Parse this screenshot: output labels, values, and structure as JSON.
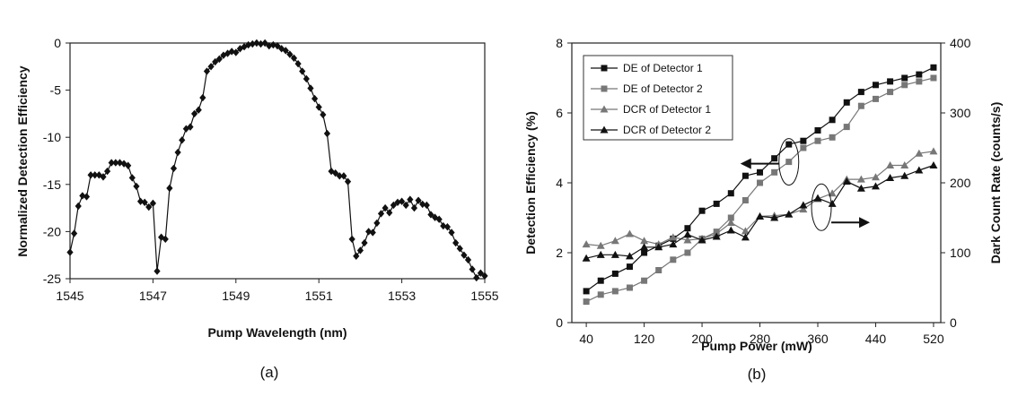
{
  "chart_data": [
    {
      "type": "line",
      "panel_label": "(a)",
      "title": "",
      "xlabel": "Pump Wavelength (nm)",
      "ylabel": "Normalized Detection Efficiency",
      "xlim": [
        1545,
        1555
      ],
      "ylim": [
        -25,
        0
      ],
      "xticks": [
        "1545",
        "1547",
        "1549",
        "1551",
        "1553",
        "1555"
      ],
      "yticks": [
        "0",
        "-5",
        "-10",
        "-15",
        "-20",
        "-25"
      ],
      "grid": false,
      "series": [
        {
          "color": "#111111",
          "marker": "diamond",
          "x": [
            1545.0,
            1545.1,
            1545.2,
            1545.3,
            1545.4,
            1545.5,
            1545.6,
            1545.7,
            1545.8,
            1545.9,
            1546.0,
            1546.1,
            1546.2,
            1546.3,
            1546.4,
            1546.5,
            1546.6,
            1546.7,
            1546.8,
            1546.9,
            1547.0,
            1547.1,
            1547.2,
            1547.3,
            1547.4,
            1547.5,
            1547.6,
            1547.7,
            1547.8,
            1547.9,
            1548.0,
            1548.1,
            1548.2,
            1548.3,
            1548.4,
            1548.5,
            1548.6,
            1548.7,
            1548.8,
            1548.9,
            1549.0,
            1549.1,
            1549.2,
            1549.3,
            1549.4,
            1549.5,
            1549.6,
            1549.7,
            1549.8,
            1549.9,
            1550.0,
            1550.1,
            1550.2,
            1550.3,
            1550.4,
            1550.5,
            1550.6,
            1550.7,
            1550.8,
            1550.9,
            1551.0,
            1551.1,
            1551.2,
            1551.3,
            1551.4,
            1551.5,
            1551.6,
            1551.7,
            1551.8,
            1551.9,
            1552.0,
            1552.1,
            1552.2,
            1552.3,
            1552.4,
            1552.5,
            1552.6,
            1552.7,
            1552.8,
            1552.9,
            1553.0,
            1553.1,
            1553.2,
            1553.3,
            1553.4,
            1553.5,
            1553.6,
            1553.7,
            1553.8,
            1553.9,
            1554.0,
            1554.1,
            1554.2,
            1554.3,
            1554.4,
            1554.5,
            1554.6,
            1554.7,
            1554.8,
            1554.9
          ],
          "y": [
            -22.2,
            -20.2,
            -17.3,
            -16.2,
            -16.3,
            -14.0,
            -14.0,
            -14.0,
            -14.2,
            -13.6,
            -12.7,
            -12.7,
            -12.7,
            -12.8,
            -13.0,
            -14.3,
            -15.2,
            -16.8,
            -16.9,
            -17.4,
            -17.0,
            -24.2,
            -20.6,
            -20.8,
            -15.4,
            -13.3,
            -11.6,
            -10.3,
            -9.1,
            -8.9,
            -7.5,
            -7.1,
            -5.8,
            -3.0,
            -2.5,
            -2.0,
            -1.7,
            -1.3,
            -1.1,
            -0.9,
            -1.0,
            -0.6,
            -0.4,
            -0.2,
            -0.1,
            0.0,
            -0.1,
            0.0,
            -0.3,
            -0.2,
            -0.3,
            -0.6,
            -0.8,
            -1.2,
            -1.6,
            -2.2,
            -3.0,
            -3.8,
            -4.8,
            -5.9,
            -6.8,
            -7.6,
            -9.6,
            -13.6,
            -13.8,
            -14.1,
            -14.1,
            -14.7,
            -20.8,
            -22.6,
            -22.0,
            -21.2,
            -20.0,
            -20.1,
            -19.1,
            -18.1,
            -17.5,
            -18.0,
            -17.2,
            -16.9,
            -16.8,
            -17.2,
            -16.6,
            -17.5,
            -16.7,
            -17.1,
            -17.2,
            -18.2,
            -18.5,
            -18.7,
            -19.4,
            -19.5,
            -20.1,
            -21.2,
            -21.8,
            -22.5,
            -23.0,
            -24.0,
            -24.9,
            -24.4
          ],
          "x_end": [
            1555.0
          ],
          "y_end": [
            -24.7
          ]
        }
      ]
    },
    {
      "type": "line",
      "panel_label": "(b)",
      "title": "",
      "xlabel": "Pump Power (mW)",
      "ylabel": "Detection Efficiency (%)",
      "y2label": "Dark Count Rate (counts/s)",
      "xlim": [
        20,
        530
      ],
      "ylim": [
        0,
        8
      ],
      "y2lim": [
        0,
        400
      ],
      "xticks": [
        "40",
        "120",
        "200",
        "280",
        "360",
        "440",
        "520"
      ],
      "yticks": [
        "0",
        "2",
        "4",
        "6",
        "8"
      ],
      "y2ticks": [
        "0",
        "100",
        "200",
        "300",
        "400"
      ],
      "grid": false,
      "legend_position": "top-left",
      "legend": [
        "DE of Detector 1",
        "DE of Detector 2",
        "DCR of Detector 1",
        "DCR of Detector 2"
      ],
      "x": [
        40,
        60,
        80,
        100,
        120,
        140,
        160,
        180,
        200,
        220,
        240,
        260,
        280,
        300,
        320,
        340,
        360,
        380,
        400,
        420,
        440,
        460,
        480,
        500,
        520
      ],
      "series": [
        {
          "name": "DE of Detector 1",
          "axis": "left",
          "color": "#111111",
          "marker": "square",
          "values": [
            0.9,
            1.2,
            1.4,
            1.6,
            2.0,
            2.2,
            2.4,
            2.7,
            3.2,
            3.4,
            3.7,
            4.2,
            4.3,
            4.7,
            5.1,
            5.2,
            5.5,
            5.8,
            6.3,
            6.6,
            6.8,
            6.9,
            7.0,
            7.1,
            7.3
          ]
        },
        {
          "name": "DE of Detector 2",
          "axis": "left",
          "color": "#777777",
          "marker": "square",
          "values": [
            0.6,
            0.8,
            0.9,
            1.0,
            1.2,
            1.5,
            1.8,
            2.0,
            2.4,
            2.6,
            3.0,
            3.5,
            4.0,
            4.3,
            4.6,
            5.0,
            5.2,
            5.3,
            5.6,
            6.2,
            6.4,
            6.6,
            6.8,
            6.9,
            7.0
          ]
        },
        {
          "name": "DCR of Detector 1",
          "axis": "right",
          "color": "#777777",
          "marker": "triangle",
          "values": [
            112,
            110,
            117,
            127,
            117,
            112,
            122,
            118,
            120,
            127,
            143,
            131,
            152,
            153,
            155,
            162,
            177,
            185,
            205,
            205,
            208,
            225,
            225,
            242,
            245
          ]
        },
        {
          "name": "DCR of Detector 2",
          "axis": "right",
          "color": "#111111",
          "marker": "triangle",
          "values": [
            92,
            97,
            97,
            95,
            108,
            108,
            112,
            126,
            118,
            123,
            132,
            122,
            152,
            150,
            155,
            168,
            178,
            170,
            202,
            192,
            195,
            207,
            210,
            218,
            225
          ]
        }
      ],
      "annotations": [
        {
          "type": "ellipse-with-arrow",
          "arrow_direction": "left",
          "target_axis": "left",
          "center_x": 320,
          "center_y": 4.6
        },
        {
          "type": "ellipse-with-arrow",
          "arrow_direction": "right",
          "target_axis": "right",
          "center_x": 365,
          "center_y": 165
        }
      ]
    }
  ]
}
